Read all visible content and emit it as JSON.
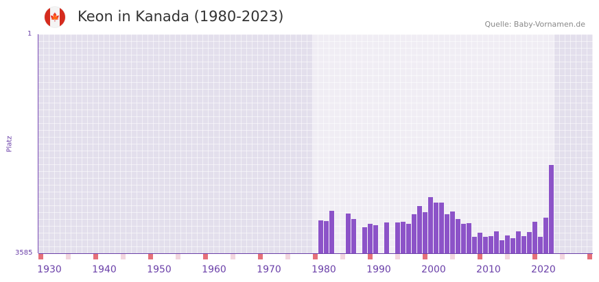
{
  "header": {
    "title": "Keon in Kanada (1980-2023)",
    "source": "Quelle: Baby-Vornamen.de",
    "flag_icon": "canada-flag-icon"
  },
  "chart_data": {
    "type": "bar",
    "title": "Keon in Kanada (1980-2023)",
    "ylabel": "Platz",
    "ylim": [
      3585,
      1
    ],
    "y_tick_labels": [
      "1",
      "3585"
    ],
    "x_tick_labels": [
      "1930",
      "1940",
      "1950",
      "1960",
      "1970",
      "1980",
      "1990",
      "2000",
      "2010",
      "2020"
    ],
    "xlim": [
      1928,
      2028
    ],
    "years": [
      1980,
      1981,
      1982,
      1985,
      1986,
      1988,
      1989,
      1990,
      1992,
      1994,
      1995,
      1996,
      1997,
      1998,
      1999,
      2000,
      2001,
      2002,
      2003,
      2004,
      2005,
      2006,
      2007,
      2008,
      2009,
      2010,
      2011,
      2012,
      2013,
      2014,
      2015,
      2016,
      2017,
      2018,
      2019,
      2020,
      2021,
      2022
    ],
    "ranks": [
      3047,
      3058,
      2891,
      2935,
      3025,
      3159,
      3103,
      3126,
      3081,
      3081,
      3070,
      3103,
      2947,
      2812,
      2913,
      2667,
      2756,
      2756,
      2947,
      2902,
      3025,
      3103,
      3092,
      3316,
      3249,
      3316,
      3305,
      3227,
      3372,
      3294,
      3339,
      3227,
      3305,
      3238,
      3070,
      3316,
      3003,
      2140
    ],
    "colors": {
      "bar": "#8c53c8",
      "decade_marker": "#e5707a",
      "half_decade_marker": "#f3d6df"
    }
  }
}
